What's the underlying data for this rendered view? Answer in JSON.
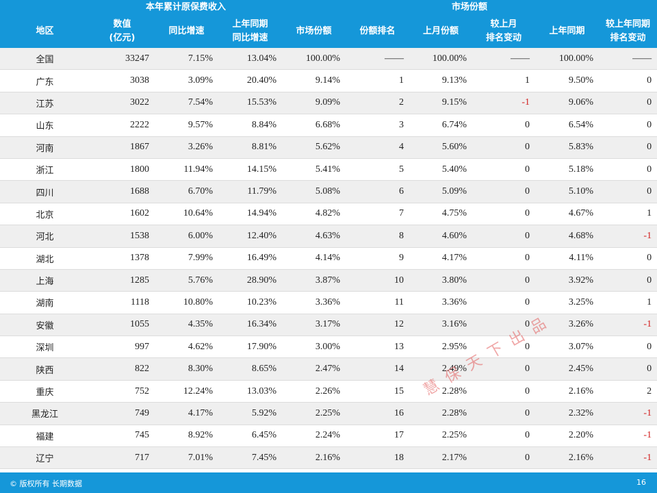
{
  "headers": {
    "group1": "本年累计原保费收入",
    "group2": "市场份额",
    "region": "地区",
    "amount_line1": "数值",
    "amount_line2": "(亿元)",
    "yoy_growth": "同比增速",
    "ly_growth_line1": "上年同期",
    "ly_growth_line2": "同比增速",
    "market_share": "市场份额",
    "share_rank": "份额排名",
    "last_month_share": "上月份额",
    "rank_vs_lm_line1": "较上月",
    "rank_vs_lm_line2": "排名变动",
    "ly_share": "上年同期",
    "rank_vs_ly_line1": "较上年同期",
    "rank_vs_ly_line2": "排名变动"
  },
  "rows": [
    [
      "全国",
      "33247",
      "7.15%",
      "13.04%",
      "100.00%",
      "——",
      "100.00%",
      "——",
      "100.00%",
      "——"
    ],
    [
      "广东",
      "3038",
      "3.09%",
      "20.40%",
      "9.14%",
      "1",
      "9.13%",
      "1",
      "9.50%",
      "0"
    ],
    [
      "江苏",
      "3022",
      "7.54%",
      "15.53%",
      "9.09%",
      "2",
      "9.15%",
      "-1",
      "9.06%",
      "0"
    ],
    [
      "山东",
      "2222",
      "9.57%",
      "8.84%",
      "6.68%",
      "3",
      "6.74%",
      "0",
      "6.54%",
      "0"
    ],
    [
      "河南",
      "1867",
      "3.26%",
      "8.81%",
      "5.62%",
      "4",
      "5.60%",
      "0",
      "5.83%",
      "0"
    ],
    [
      "浙江",
      "1800",
      "11.94%",
      "14.15%",
      "5.41%",
      "5",
      "5.40%",
      "0",
      "5.18%",
      "0"
    ],
    [
      "四川",
      "1688",
      "6.70%",
      "11.79%",
      "5.08%",
      "6",
      "5.09%",
      "0",
      "5.10%",
      "0"
    ],
    [
      "北京",
      "1602",
      "10.64%",
      "14.94%",
      "4.82%",
      "7",
      "4.75%",
      "0",
      "4.67%",
      "1"
    ],
    [
      "河北",
      "1538",
      "6.00%",
      "12.40%",
      "4.63%",
      "8",
      "4.60%",
      "0",
      "4.68%",
      "-1"
    ],
    [
      "湖北",
      "1378",
      "7.99%",
      "16.49%",
      "4.14%",
      "9",
      "4.17%",
      "0",
      "4.11%",
      "0"
    ],
    [
      "上海",
      "1285",
      "5.76%",
      "28.90%",
      "3.87%",
      "10",
      "3.80%",
      "0",
      "3.92%",
      "0"
    ],
    [
      "湖南",
      "1118",
      "10.80%",
      "10.23%",
      "3.36%",
      "11",
      "3.36%",
      "0",
      "3.25%",
      "1"
    ],
    [
      "安徽",
      "1055",
      "4.35%",
      "16.34%",
      "3.17%",
      "12",
      "3.16%",
      "0",
      "3.26%",
      "-1"
    ],
    [
      "深圳",
      "997",
      "4.62%",
      "17.90%",
      "3.00%",
      "13",
      "2.95%",
      "0",
      "3.07%",
      "0"
    ],
    [
      "陕西",
      "822",
      "8.30%",
      "8.65%",
      "2.47%",
      "14",
      "2.49%",
      "0",
      "2.45%",
      "0"
    ],
    [
      "重庆",
      "752",
      "12.24%",
      "13.03%",
      "2.26%",
      "15",
      "2.28%",
      "0",
      "2.16%",
      "2"
    ],
    [
      "黑龙江",
      "749",
      "4.17%",
      "5.92%",
      "2.25%",
      "16",
      "2.28%",
      "0",
      "2.32%",
      "-1"
    ],
    [
      "福建",
      "745",
      "8.92%",
      "6.45%",
      "2.24%",
      "17",
      "2.25%",
      "0",
      "2.20%",
      "-1"
    ],
    [
      "辽宁",
      "717",
      "7.01%",
      "7.45%",
      "2.16%",
      "18",
      "2.17%",
      "0",
      "2.16%",
      "-1"
    ]
  ],
  "colors": {
    "header_bg": "#1597d9",
    "negative": "#d21f1f",
    "stripe": "#efefef"
  },
  "footer": {
    "copyright": "© 版权所有 长期数据",
    "page_number": "16"
  },
  "watermark": "慧保天下出品"
}
